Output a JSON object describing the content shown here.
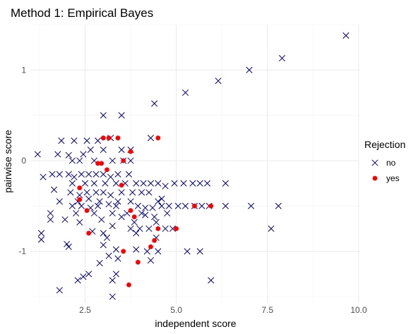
{
  "chart_data": {
    "type": "scatter",
    "title": "Method 1: Empirical Bayes",
    "xlabel": "independent score",
    "ylabel": "pairwise score",
    "xlim": [
      1.0,
      10.0
    ],
    "ylim": [
      -1.57,
      1.5
    ],
    "x_ticks": [
      2.5,
      5.0,
      7.5,
      10.0
    ],
    "x_tick_labels": [
      "2.5",
      "5.0",
      "7.5",
      "10.0"
    ],
    "y_ticks": [
      -1,
      0,
      1
    ],
    "y_tick_labels": [
      "-1",
      "0",
      "1"
    ],
    "grid": true,
    "legend": {
      "title": "Rejection",
      "position": "right",
      "entries": [
        {
          "label": "no",
          "marker": "x",
          "color": "#000080"
        },
        {
          "label": "yes",
          "marker": "circle",
          "color": "#ff0000"
        }
      ]
    },
    "series": [
      {
        "name": "no",
        "marker": "x",
        "color": "#000080",
        "points": [
          [
            9.65,
            1.38
          ],
          [
            7.9,
            1.13
          ],
          [
            7.0,
            1.0
          ],
          [
            6.15,
            0.88
          ],
          [
            5.25,
            0.75
          ],
          [
            4.4,
            0.63
          ],
          [
            3.0,
            0.5
          ],
          [
            3.5,
            0.5
          ],
          [
            1.85,
            0.22
          ],
          [
            2.2,
            0.22
          ],
          [
            2.55,
            0.22
          ],
          [
            2.85,
            0.22
          ],
          [
            3.2,
            0.25
          ],
          [
            4.3,
            0.25
          ],
          [
            1.2,
            0.07
          ],
          [
            1.75,
            0.07
          ],
          [
            2.05,
            0.06
          ],
          [
            2.45,
            0.07
          ],
          [
            2.65,
            0.12
          ],
          [
            3.0,
            0.12
          ],
          [
            3.5,
            0.12
          ],
          [
            3.75,
            0.12
          ],
          [
            2.15,
            0.0
          ],
          [
            2.35,
            0.0
          ],
          [
            2.75,
            0.0
          ],
          [
            3.25,
            0.0
          ],
          [
            3.55,
            0.0
          ],
          [
            3.75,
            0.0
          ],
          [
            1.35,
            -0.18
          ],
          [
            1.6,
            -0.15
          ],
          [
            1.8,
            -0.15
          ],
          [
            2.05,
            -0.15
          ],
          [
            2.2,
            -0.18
          ],
          [
            2.4,
            -0.15
          ],
          [
            2.6,
            -0.15
          ],
          [
            2.8,
            -0.15
          ],
          [
            3.0,
            -0.15
          ],
          [
            3.2,
            -0.18
          ],
          [
            3.4,
            -0.15
          ],
          [
            3.7,
            -0.15
          ],
          [
            2.15,
            -0.25
          ],
          [
            2.5,
            -0.25
          ],
          [
            2.75,
            -0.25
          ],
          [
            3.05,
            -0.25
          ],
          [
            3.35,
            -0.25
          ],
          [
            3.6,
            -0.25
          ],
          [
            3.9,
            -0.25
          ],
          [
            4.1,
            -0.25
          ],
          [
            4.3,
            -0.25
          ],
          [
            4.5,
            -0.25
          ],
          [
            4.7,
            -0.28
          ],
          [
            4.95,
            -0.25
          ],
          [
            5.2,
            -0.25
          ],
          [
            5.45,
            -0.25
          ],
          [
            5.65,
            -0.25
          ],
          [
            5.85,
            -0.25
          ],
          [
            6.35,
            -0.25
          ],
          [
            1.65,
            -0.32
          ],
          [
            2.1,
            -0.35
          ],
          [
            2.35,
            -0.38
          ],
          [
            2.55,
            -0.35
          ],
          [
            2.8,
            -0.35
          ],
          [
            3.0,
            -0.35
          ],
          [
            3.2,
            -0.38
          ],
          [
            3.5,
            -0.35
          ],
          [
            3.8,
            -0.35
          ],
          [
            4.05,
            -0.35
          ],
          [
            4.25,
            -0.35
          ],
          [
            4.6,
            -0.42
          ],
          [
            1.8,
            -0.45
          ],
          [
            2.3,
            -0.45
          ],
          [
            2.6,
            -0.42
          ],
          [
            2.9,
            -0.45
          ],
          [
            3.15,
            -0.48
          ],
          [
            3.4,
            -0.45
          ],
          [
            3.75,
            -0.45
          ],
          [
            4.5,
            -0.45
          ],
          [
            2.15,
            -0.5
          ],
          [
            2.4,
            -0.5
          ],
          [
            2.65,
            -0.52
          ],
          [
            2.85,
            -0.5
          ],
          [
            3.35,
            -0.5
          ],
          [
            3.95,
            -0.5
          ],
          [
            4.15,
            -0.52
          ],
          [
            4.35,
            -0.52
          ],
          [
            4.6,
            -0.5
          ],
          [
            4.8,
            -0.5
          ],
          [
            5.05,
            -0.5
          ],
          [
            5.25,
            -0.5
          ],
          [
            5.5,
            -0.5
          ],
          [
            5.7,
            -0.5
          ],
          [
            5.9,
            -0.5
          ],
          [
            6.35,
            -0.5
          ],
          [
            7.05,
            -0.5
          ],
          [
            7.8,
            -0.5
          ],
          [
            1.55,
            -0.58
          ],
          [
            2.25,
            -0.58
          ],
          [
            2.75,
            -0.58
          ],
          [
            3.25,
            -0.58
          ],
          [
            3.65,
            -0.58
          ],
          [
            4.05,
            -0.58
          ],
          [
            4.15,
            -0.6
          ],
          [
            4.75,
            -0.58
          ],
          [
            3.5,
            -0.62
          ],
          [
            4.4,
            -0.62
          ],
          [
            1.55,
            -0.65
          ],
          [
            1.95,
            -0.65
          ],
          [
            2.35,
            -0.68
          ],
          [
            2.95,
            -0.65
          ],
          [
            3.85,
            -0.68
          ],
          [
            4.45,
            -0.68
          ],
          [
            3.25,
            -0.72
          ],
          [
            3.75,
            -0.75
          ],
          [
            4.0,
            -0.75
          ],
          [
            4.25,
            -0.75
          ],
          [
            4.7,
            -0.75
          ],
          [
            4.9,
            -0.75
          ],
          [
            7.6,
            -0.75
          ],
          [
            1.3,
            -0.8
          ],
          [
            2.7,
            -0.78
          ],
          [
            3.0,
            -0.8
          ],
          [
            3.9,
            -0.8
          ],
          [
            1.3,
            -0.87
          ],
          [
            3.1,
            -0.85
          ],
          [
            4.45,
            -0.85
          ],
          [
            2.0,
            -0.92
          ],
          [
            2.05,
            -0.95
          ],
          [
            3.0,
            -0.93
          ],
          [
            3.35,
            -0.98
          ],
          [
            3.9,
            -0.98
          ],
          [
            4.2,
            -1.0
          ],
          [
            4.5,
            -1.0
          ],
          [
            5.3,
            -1.0
          ],
          [
            5.65,
            -1.0
          ],
          [
            3.15,
            -1.05
          ],
          [
            3.4,
            -1.08
          ],
          [
            4.3,
            -1.1
          ],
          [
            2.9,
            -1.13
          ],
          [
            2.6,
            -1.25
          ],
          [
            2.45,
            -1.28
          ],
          [
            3.35,
            -1.25
          ],
          [
            2.3,
            -1.32
          ],
          [
            3.25,
            -1.32
          ],
          [
            5.95,
            -1.32
          ],
          [
            1.8,
            -1.43
          ],
          [
            3.25,
            -1.5
          ]
        ]
      },
      {
        "name": "yes",
        "marker": "circle",
        "color": "#ff0000",
        "points": [
          [
            3.0,
            0.25
          ],
          [
            3.15,
            0.25
          ],
          [
            3.4,
            0.25
          ],
          [
            4.5,
            0.25
          ],
          [
            3.75,
            0.1
          ],
          [
            3.55,
            0.0
          ],
          [
            2.85,
            -0.03
          ],
          [
            2.95,
            -0.03
          ],
          [
            3.1,
            -0.1
          ],
          [
            2.35,
            -0.3
          ],
          [
            3.5,
            -0.27
          ],
          [
            2.35,
            -0.43
          ],
          [
            5.5,
            -0.5
          ],
          [
            5.95,
            -0.5
          ],
          [
            2.55,
            -0.55
          ],
          [
            3.75,
            -0.55
          ],
          [
            3.85,
            -0.62
          ],
          [
            4.5,
            -0.75
          ],
          [
            5.0,
            -0.75
          ],
          [
            2.6,
            -0.8
          ],
          [
            4.4,
            -0.88
          ],
          [
            4.3,
            -0.95
          ],
          [
            3.55,
            -1.0
          ],
          [
            3.95,
            -1.12
          ],
          [
            3.7,
            -1.37
          ]
        ]
      }
    ]
  }
}
